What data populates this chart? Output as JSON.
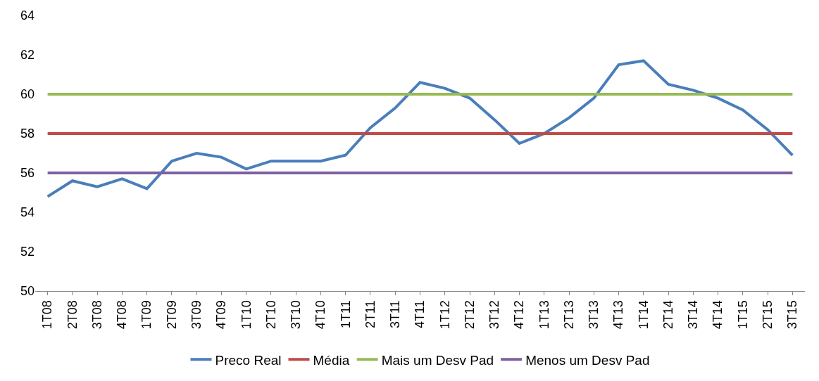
{
  "chart_data": {
    "type": "line",
    "categories": [
      "1T08",
      "2T08",
      "3T08",
      "4T08",
      "1T09",
      "2T09",
      "3T09",
      "4T09",
      "1T10",
      "2T10",
      "3T10",
      "4T10",
      "1T11",
      "2T11",
      "3T11",
      "4T11",
      "1T12",
      "2T12",
      "3T12",
      "4T12",
      "1T13",
      "2T13",
      "3T13",
      "4T13",
      "1T14",
      "2T14",
      "3T14",
      "4T14",
      "1T15",
      "2T15",
      "3T15"
    ],
    "series": [
      {
        "name": "Preco Real",
        "color": "#4a7ebb",
        "values": [
          54.8,
          55.6,
          55.3,
          55.7,
          55.2,
          56.6,
          57.0,
          56.8,
          56.2,
          56.6,
          56.6,
          56.6,
          56.9,
          58.3,
          59.3,
          60.6,
          60.3,
          59.8,
          58.7,
          57.5,
          58.0,
          58.8,
          59.8,
          61.5,
          61.7,
          60.5,
          60.2,
          59.8,
          59.2,
          58.2,
          56.9
        ]
      },
      {
        "name": "Média",
        "color": "#be4b48",
        "values": [
          58,
          58,
          58,
          58,
          58,
          58,
          58,
          58,
          58,
          58,
          58,
          58,
          58,
          58,
          58,
          58,
          58,
          58,
          58,
          58,
          58,
          58,
          58,
          58,
          58,
          58,
          58,
          58,
          58,
          58,
          58
        ]
      },
      {
        "name": "Mais um Desv Pad",
        "color": "#98b954",
        "values": [
          60,
          60,
          60,
          60,
          60,
          60,
          60,
          60,
          60,
          60,
          60,
          60,
          60,
          60,
          60,
          60,
          60,
          60,
          60,
          60,
          60,
          60,
          60,
          60,
          60,
          60,
          60,
          60,
          60,
          60,
          60
        ]
      },
      {
        "name": "Menos um Desv Pad",
        "color": "#7d60a0",
        "values": [
          56,
          56,
          56,
          56,
          56,
          56,
          56,
          56,
          56,
          56,
          56,
          56,
          56,
          56,
          56,
          56,
          56,
          56,
          56,
          56,
          56,
          56,
          56,
          56,
          56,
          56,
          56,
          56,
          56,
          56,
          56
        ]
      }
    ],
    "ylim": [
      50,
      64
    ],
    "yticks": [
      50,
      52,
      54,
      56,
      58,
      60,
      62,
      64
    ],
    "grid": false,
    "legend": "bottom",
    "marker": "none",
    "line_style": "solid"
  }
}
